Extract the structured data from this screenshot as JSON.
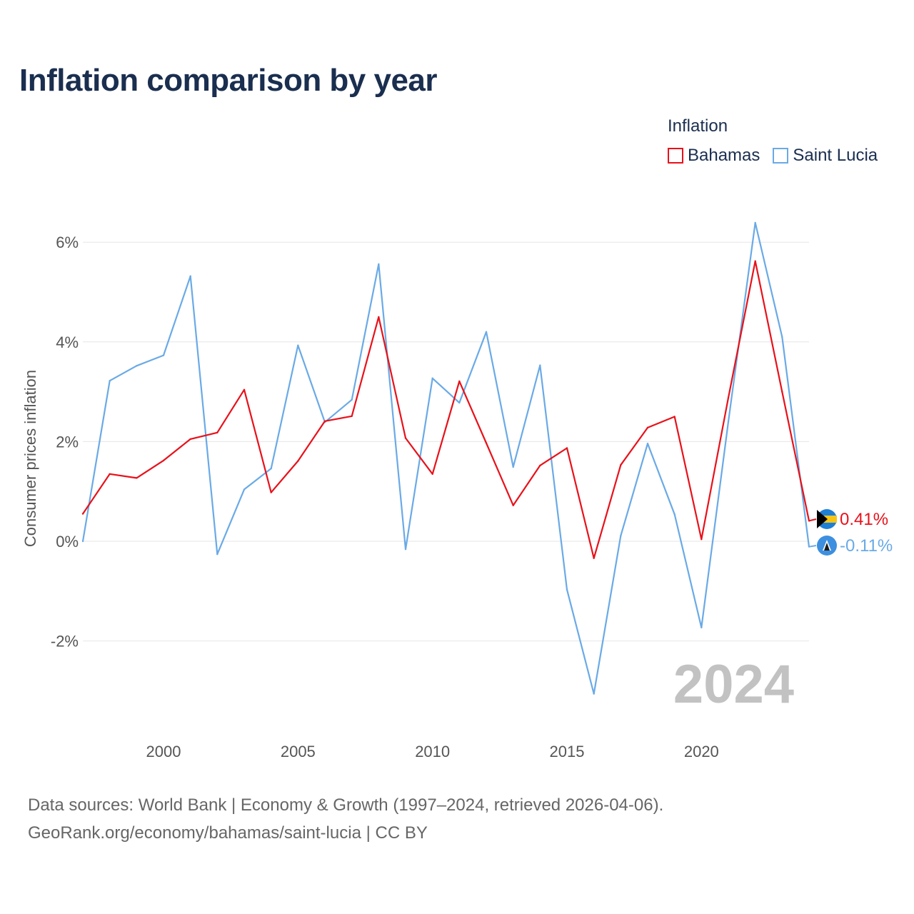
{
  "title": "Inflation comparison by year",
  "legend": {
    "title": "Inflation",
    "items": [
      {
        "label": "Bahamas",
        "color": "#e8111a"
      },
      {
        "label": "Saint Lucia",
        "color": "#6aaae6"
      }
    ]
  },
  "chart_data": {
    "type": "line",
    "title": "Inflation comparison by year",
    "xlabel": "",
    "ylabel": "Consumer prices inflation",
    "x": [
      1997,
      1998,
      1999,
      2000,
      2001,
      2002,
      2003,
      2004,
      2005,
      2006,
      2007,
      2008,
      2009,
      2010,
      2011,
      2012,
      2013,
      2014,
      2015,
      2016,
      2017,
      2018,
      2019,
      2020,
      2021,
      2022,
      2023,
      2024
    ],
    "series": [
      {
        "name": "Bahamas",
        "color": "#e8111a",
        "end_label": "0.41%",
        "values": [
          0.55,
          1.35,
          1.27,
          1.62,
          2.05,
          2.18,
          3.04,
          0.98,
          1.61,
          2.41,
          2.51,
          4.5,
          2.07,
          1.35,
          3.21,
          1.97,
          0.72,
          1.52,
          1.87,
          -0.34,
          1.53,
          2.28,
          2.5,
          0.04,
          2.88,
          5.62,
          3.0,
          0.41
        ]
      },
      {
        "name": "Saint Lucia",
        "color": "#6aaae6",
        "end_label": "-0.11%",
        "values": [
          0.0,
          3.22,
          3.52,
          3.73,
          5.32,
          -0.26,
          1.04,
          1.46,
          3.93,
          2.39,
          2.84,
          5.56,
          -0.16,
          3.27,
          2.78,
          4.2,
          1.49,
          3.53,
          -0.97,
          -3.06,
          0.11,
          1.96,
          0.54,
          -1.73,
          2.4,
          6.39,
          4.1,
          -0.11
        ]
      }
    ],
    "xlim": [
      1997,
      2024
    ],
    "ylim": [
      -3.5,
      6.5
    ],
    "yticks": [
      6,
      4,
      2,
      0,
      -2
    ],
    "ytick_labels": [
      "6%",
      "4%",
      "2%",
      "0%",
      "-2%"
    ],
    "xticks": [
      2000,
      2005,
      2010,
      2015,
      2020
    ],
    "xtick_labels": [
      "2000",
      "2005",
      "2010",
      "2015",
      "2020"
    ],
    "watermark_year": "2024",
    "grid": true
  },
  "footer": {
    "line1": "Data sources: World Bank | Economy & Growth (1997–2024, retrieved 2026-04-06).",
    "line2": "GeoRank.org/economy/bahamas/saint-lucia | CC BY"
  }
}
